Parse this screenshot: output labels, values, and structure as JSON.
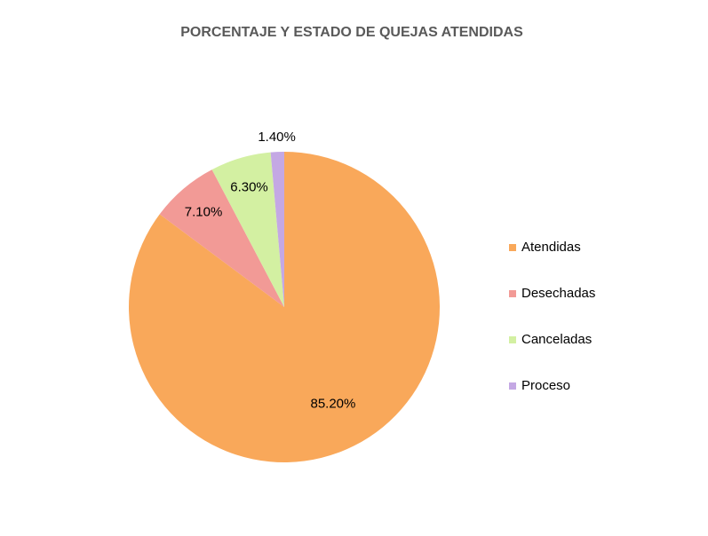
{
  "chart_data": {
    "type": "pie",
    "title": "PORCENTAJE Y ESTADO DE QUEJAS ATENDIDAS",
    "categories": [
      "Atendidas",
      "Desechadas",
      "Canceladas",
      "Proceso"
    ],
    "values": [
      85.2,
      7.1,
      6.3,
      1.4
    ],
    "value_labels": [
      "85.20%",
      "7.10%",
      "6.30%",
      "1.40%"
    ],
    "colors": [
      "#f9a85a",
      "#f29a96",
      "#d3f0a2",
      "#c4a8e4"
    ],
    "legend": "right"
  }
}
